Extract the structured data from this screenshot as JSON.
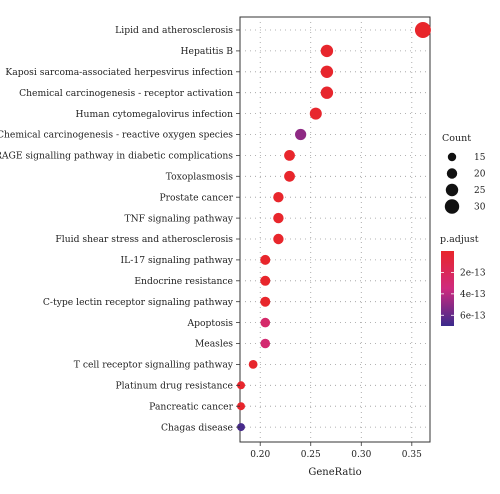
{
  "chart_data": {
    "type": "scatter",
    "title": "",
    "xlabel": "GeneRatio",
    "ylabel": "",
    "xlim": [
      0.18,
      0.368
    ],
    "x_ticks": [
      0.2,
      0.25,
      0.3,
      0.35
    ],
    "x_tick_labels": [
      "0.20",
      "0.25",
      "0.30",
      "0.35"
    ],
    "grid": "dotted",
    "categories": [
      "Lipid and atherosclerosis",
      "Hepatitis B",
      "Kaposi sarcoma-associated herpesvirus infection",
      "Chemical carcinogenesis - receptor activation",
      "Human cytomegalovirus infection",
      "Chemical carcinogenesis - reactive oxygen species",
      "AGE-RAGE signalling pathway in diabetic complications",
      "Toxoplasmosis",
      "Prostate cancer",
      "TNF signaling pathway",
      "Fluid shear stress and atherosclerosis",
      "IL-17 signaling pathway",
      "Endocrine resistance",
      "C-type lectin receptor signaling pathway",
      "Apoptosis",
      "Measles",
      "T cell receptor signalling pathway",
      "Platinum drug resistance",
      "Pancreatic cancer",
      "Chagas disease"
    ],
    "points": [
      {
        "gene_ratio": 0.361,
        "count": 34,
        "p_adjust": 1e-17
      },
      {
        "gene_ratio": 0.266,
        "count": 25,
        "p_adjust": 1e-14
      },
      {
        "gene_ratio": 0.266,
        "count": 25,
        "p_adjust": 1e-14
      },
      {
        "gene_ratio": 0.266,
        "count": 25,
        "p_adjust": 1e-14
      },
      {
        "gene_ratio": 0.255,
        "count": 24,
        "p_adjust": 1e-14
      },
      {
        "gene_ratio": 0.24,
        "count": 22,
        "p_adjust": 5e-13
      },
      {
        "gene_ratio": 0.229,
        "count": 21,
        "p_adjust": 5e-15
      },
      {
        "gene_ratio": 0.229,
        "count": 21,
        "p_adjust": 5e-15
      },
      {
        "gene_ratio": 0.218,
        "count": 20,
        "p_adjust": 5e-15
      },
      {
        "gene_ratio": 0.218,
        "count": 20,
        "p_adjust": 5e-15
      },
      {
        "gene_ratio": 0.218,
        "count": 20,
        "p_adjust": 5e-15
      },
      {
        "gene_ratio": 0.205,
        "count": 19,
        "p_adjust": 5e-15
      },
      {
        "gene_ratio": 0.205,
        "count": 19,
        "p_adjust": 5e-15
      },
      {
        "gene_ratio": 0.205,
        "count": 19,
        "p_adjust": 5e-15
      },
      {
        "gene_ratio": 0.205,
        "count": 18,
        "p_adjust": 2.6e-13
      },
      {
        "gene_ratio": 0.205,
        "count": 18,
        "p_adjust": 2.9e-13
      },
      {
        "gene_ratio": 0.193,
        "count": 16,
        "p_adjust": 1e-14
      },
      {
        "gene_ratio": 0.181,
        "count": 14,
        "p_adjust": 1e-14
      },
      {
        "gene_ratio": 0.181,
        "count": 14,
        "p_adjust": 1e-14
      },
      {
        "gene_ratio": 0.181,
        "count": 14,
        "p_adjust": 6.7e-13
      }
    ],
    "size_legend": {
      "title": "Count",
      "values": [
        15,
        20,
        25,
        30
      ],
      "labels": [
        "15",
        "20",
        "25",
        "30"
      ]
    },
    "color_legend": {
      "title": "p.adjust",
      "range": [
        0,
        7e-13
      ],
      "ticks": [
        2e-13,
        4e-13,
        6e-13
      ],
      "tick_labels": [
        "2e-13",
        "4e-13",
        "6e-13"
      ],
      "colors": [
        "#e8262b",
        "#cf2a7e",
        "#3a2a8c"
      ]
    },
    "legend_position": "right"
  }
}
